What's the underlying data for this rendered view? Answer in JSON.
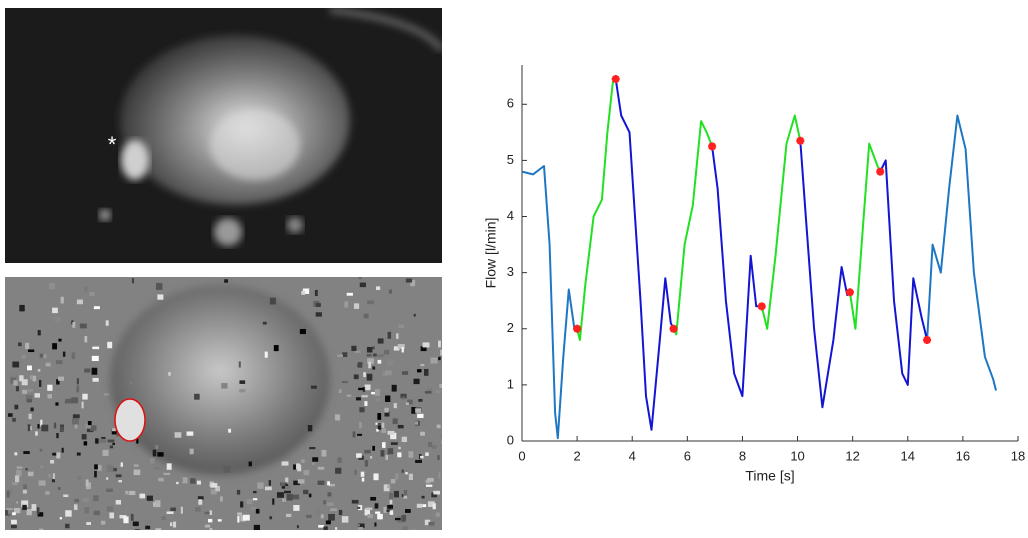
{
  "image_annotation": "*",
  "chart_data": {
    "type": "line",
    "xlabel": "Time [s]",
    "ylabel": "Flow [l/min]",
    "xlim": [
      0,
      18
    ],
    "ylim": [
      0,
      6.7
    ],
    "xticks": [
      0,
      2,
      4,
      6,
      8,
      10,
      12,
      14,
      16,
      18
    ],
    "yticks": [
      0,
      1,
      2,
      3,
      4,
      5,
      6
    ],
    "series": [
      {
        "color": "#1f77c4",
        "x": [
          0,
          0.4,
          0.8,
          1.0,
          1.2,
          1.3,
          1.5,
          1.7,
          1.9,
          2.0,
          null,
          14.7,
          14.9,
          15.2,
          15.5,
          15.8,
          16.1,
          16.4,
          16.8,
          17.1,
          17.2
        ],
        "values": [
          4.8,
          4.75,
          4.9,
          3.5,
          0.5,
          0.05,
          1.5,
          2.7,
          2.0,
          2.0,
          null,
          1.8,
          3.5,
          3.0,
          4.5,
          5.8,
          5.2,
          3.0,
          1.5,
          1.1,
          0.9
        ]
      },
      {
        "color": "#22e022",
        "x": [
          2.0,
          2.1,
          2.3,
          2.6,
          2.9,
          3.1,
          3.3,
          3.4,
          null,
          5.5,
          5.6,
          5.9,
          6.2,
          6.5,
          6.7,
          6.9,
          null,
          8.7,
          8.9,
          9.2,
          9.6,
          9.9,
          10.1,
          null,
          11.9,
          12.1,
          12.4,
          12.6,
          12.9,
          13.0
        ],
        "values": [
          2.0,
          1.8,
          2.8,
          4.0,
          4.3,
          5.5,
          6.4,
          6.45,
          null,
          2.0,
          1.9,
          3.5,
          4.2,
          5.7,
          5.5,
          5.25,
          null,
          2.4,
          2.0,
          3.3,
          5.3,
          5.8,
          5.35,
          null,
          2.65,
          2.0,
          4.0,
          5.3,
          4.9,
          4.8
        ]
      },
      {
        "color": "#1414d4",
        "x": [
          3.4,
          3.6,
          3.9,
          4.1,
          4.3,
          4.5,
          4.7,
          5.0,
          5.2,
          5.4,
          5.5,
          null,
          6.9,
          7.1,
          7.4,
          7.7,
          8.0,
          8.3,
          8.5,
          8.7,
          null,
          10.1,
          10.3,
          10.6,
          10.9,
          11.3,
          11.6,
          11.8,
          11.9,
          null,
          13.0,
          13.2,
          13.5,
          13.8,
          14.0,
          14.2,
          14.5,
          14.7
        ],
        "values": [
          6.45,
          5.8,
          5.5,
          4.0,
          2.5,
          0.8,
          0.2,
          1.8,
          2.9,
          2.1,
          2.0,
          null,
          5.25,
          4.5,
          2.5,
          1.2,
          0.8,
          3.3,
          2.4,
          2.4,
          null,
          5.35,
          4.0,
          2.0,
          0.6,
          1.8,
          3.1,
          2.6,
          2.65,
          null,
          4.8,
          5.0,
          2.5,
          1.2,
          1.0,
          2.9,
          2.2,
          1.8
        ]
      }
    ],
    "markers": {
      "color": "#ff2020",
      "x": [
        2.0,
        3.4,
        5.5,
        6.9,
        8.7,
        10.1,
        11.9,
        13.0,
        14.7
      ],
      "values": [
        2.0,
        6.45,
        2.0,
        5.25,
        2.4,
        5.35,
        2.65,
        4.8,
        1.8
      ]
    }
  }
}
